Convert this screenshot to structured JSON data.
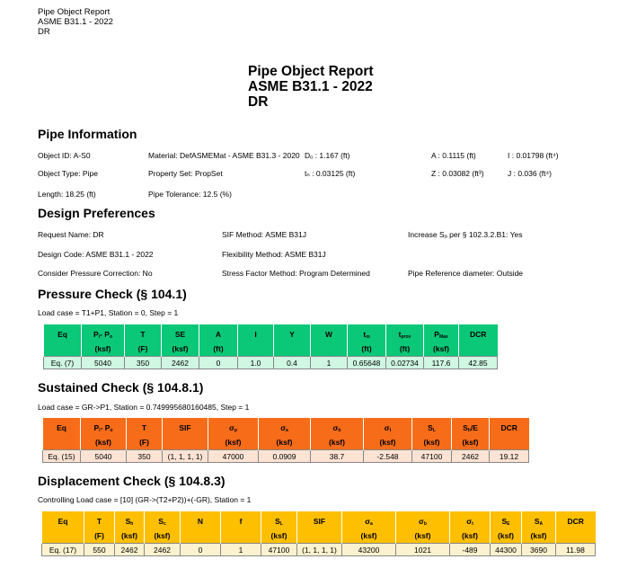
{
  "header": {
    "line1": "Pipe Object Report",
    "line2": "ASME B31.1 - 2022",
    "line3": "DR"
  },
  "title": {
    "line1": "Pipe Object Report",
    "line2": "ASME B31.1 - 2022",
    "line3": "DR"
  },
  "pipe_info": {
    "heading": "Pipe Information",
    "fields": [
      "Object ID: A-S0",
      "Material: DefASMEMat - ASME B31.3 - 2020",
      "Dₒ : 1.167 (ft)",
      "A : 0.1115 (ft)",
      "I : 0.01798 (ft⁴)",
      "Object Type: Pipe",
      "Property Set: PropSet",
      "tₙ : 0.03125 (ft)",
      "Z : 0.03082 (ft³)",
      "J : 0.036 (ft⁴)",
      "Length: 18.25 (ft)",
      "Pipe Tolerance: 12.5 (%)"
    ]
  },
  "design_prefs": {
    "heading": "Design Preferences",
    "fields": [
      "Request Name: DR",
      "SIF Method: ASME B31J",
      "Increase Sₐ per § 102.3.2.B1: Yes",
      "Design Code: ASME B31.1 - 2022",
      "Flexibility Method: ASME B31J",
      "Consider Pressure Correction: No",
      "Stress Factor Method: Program Determined",
      "Pipe Reference diameter: Outside"
    ]
  },
  "pressure": {
    "heading": "Pressure Check (§ 104.1)",
    "load_case": "Load case = T1+P1, Station = 0, Step = 1",
    "headers": [
      [
        "Eq",
        ""
      ],
      [
        "P",
        "i",
        "- P",
        "o",
        "(ksf)"
      ],
      [
        "T",
        "",
        "",
        "",
        "(F)"
      ],
      [
        "SE",
        "",
        "",
        "",
        "(ksf)"
      ],
      [
        "A",
        "",
        "",
        "",
        "(ft)"
      ],
      [
        "I",
        ""
      ],
      [
        "Y",
        ""
      ],
      [
        "W",
        ""
      ],
      [
        "t",
        "m",
        "",
        "",
        "(ft)"
      ],
      [
        "t",
        "prov",
        "",
        "",
        "(ft)"
      ],
      [
        "P",
        "Max",
        "",
        "",
        "(ksf)"
      ],
      [
        "DCR",
        ""
      ]
    ],
    "row": [
      "Eq. (7)",
      "5040",
      "350",
      "2462",
      "0",
      "1.0",
      "0.4",
      "1",
      "0.65648",
      "0.02734",
      "117.6",
      "42.85"
    ]
  },
  "sustained": {
    "heading": "Sustained Check (§ 104.8.1)",
    "load_case": "Load case = GR->P1, Station = 0.749995680160485, Step = 1",
    "headers": [
      [
        "Eq",
        ""
      ],
      [
        "P",
        "i",
        "- P",
        "o",
        "(ksf)"
      ],
      [
        "T",
        "",
        "",
        "",
        "(F)"
      ],
      [
        "SIF",
        ""
      ],
      [
        "σ",
        "p",
        "",
        "",
        "(ksf)"
      ],
      [
        "σ",
        "a",
        "",
        "",
        "(ksf)"
      ],
      [
        "σ",
        "b",
        "",
        "",
        "(ksf)"
      ],
      [
        "σ",
        "t",
        "",
        "",
        "(ksf)"
      ],
      [
        "S",
        "L",
        "",
        "",
        "(ksf)"
      ],
      [
        "S",
        "h",
        "/E",
        "",
        "(ksf)"
      ],
      [
        "DCR",
        ""
      ]
    ],
    "row": [
      "Eq. (15)",
      "5040",
      "350",
      "(1, 1, 1, 1)",
      "47000",
      "0.0909",
      "38.7",
      "-2.548",
      "47100",
      "2462",
      "19.12"
    ]
  },
  "displacement": {
    "heading": "Displacement Check (§ 104.8.3)",
    "load_case": "Controlling Load case = [10] (GR->(T2+P2))+(-GR), Station = 1",
    "headers": [
      [
        "Eq",
        ""
      ],
      [
        "T",
        "",
        "",
        "",
        "(F)"
      ],
      [
        "S",
        "h",
        "",
        "",
        "(ksf)"
      ],
      [
        "S",
        "c",
        "",
        "",
        "(ksf)"
      ],
      [
        "N",
        ""
      ],
      [
        "f",
        ""
      ],
      [
        "S",
        "L",
        "",
        "",
        "(ksf)"
      ],
      [
        "SIF",
        ""
      ],
      [
        "σ",
        "a",
        "",
        "",
        "(ksf)"
      ],
      [
        "σ",
        "b",
        "",
        "",
        "(ksf)"
      ],
      [
        "σ",
        "t",
        "",
        "",
        "(ksf)"
      ],
      [
        "S",
        "E",
        "",
        "",
        "(ksf)"
      ],
      [
        "S",
        "A",
        "",
        "",
        "(ksf)"
      ],
      [
        "DCR",
        ""
      ]
    ],
    "row": [
      "Eq. (17)",
      "550",
      "2462",
      "2462",
      "0",
      "1",
      "47100",
      "(1, 1, 1, 1)",
      "43200",
      "1021",
      "-489",
      "44300",
      "3690",
      "11.98"
    ]
  },
  "colors": {
    "pressure": "#0ac878",
    "sustained": "#f76c19",
    "displacement": "#fdbf00"
  }
}
